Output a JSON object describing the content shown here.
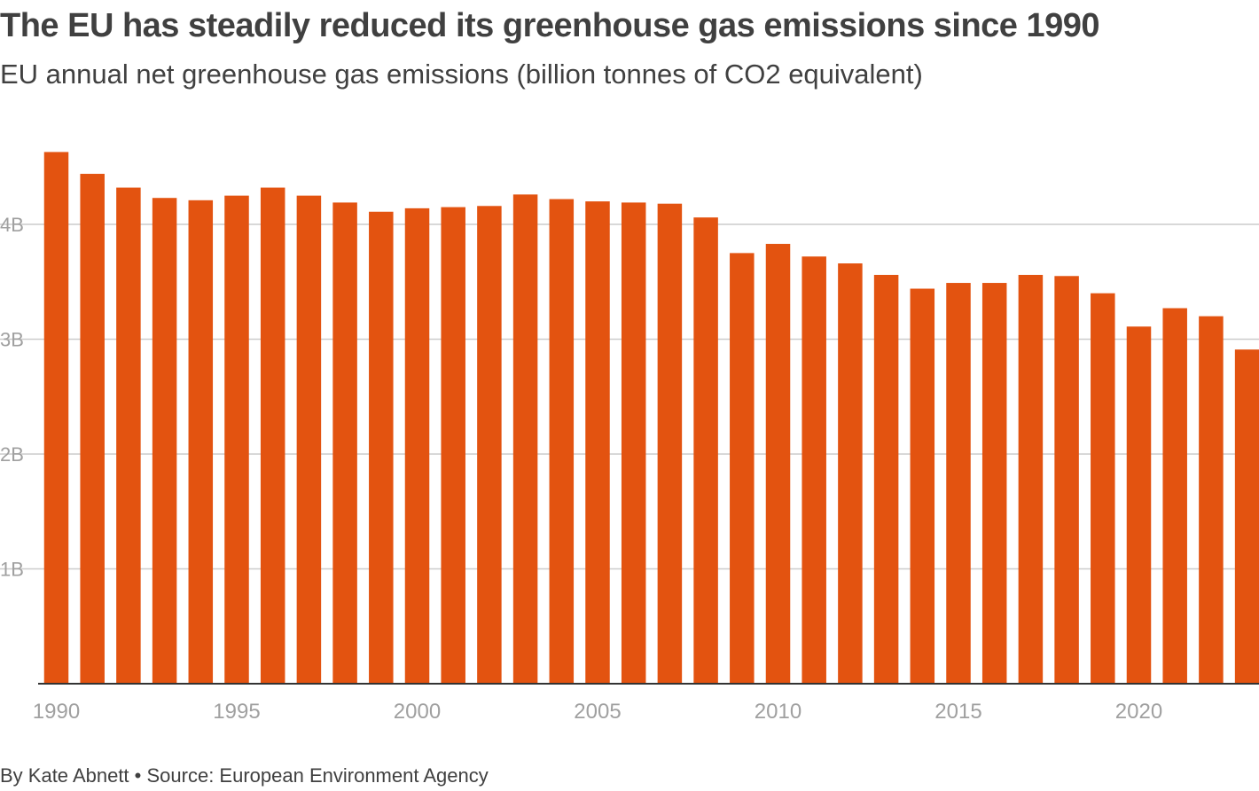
{
  "header": {
    "title": "The EU has steadily reduced its greenhouse gas emissions since 1990",
    "subtitle": "EU annual net greenhouse gas emissions (billion tonnes of CO2 equivalent)"
  },
  "footer": {
    "byline": "By Kate Abnett",
    "separator": "•",
    "source": "Source: European Environment Agency"
  },
  "colors": {
    "bar": "#e35310",
    "grid": "#cccccc",
    "axis": "#333333",
    "tick_text": "#a0a0a0"
  },
  "chart_data": {
    "type": "bar",
    "title": "The EU has steadily reduced its greenhouse gas emissions since 1990",
    "subtitle": "EU annual net greenhouse gas emissions (billion tonnes of CO2 equivalent)",
    "categories": [
      1990,
      1991,
      1992,
      1993,
      1994,
      1995,
      1996,
      1997,
      1998,
      1999,
      2000,
      2001,
      2002,
      2003,
      2004,
      2005,
      2006,
      2007,
      2008,
      2009,
      2010,
      2011,
      2012,
      2013,
      2014,
      2015,
      2016,
      2017,
      2018,
      2019,
      2020,
      2021,
      2022,
      2023
    ],
    "values": [
      4.63,
      4.44,
      4.32,
      4.23,
      4.21,
      4.25,
      4.32,
      4.25,
      4.19,
      4.11,
      4.14,
      4.15,
      4.16,
      4.26,
      4.22,
      4.2,
      4.19,
      4.18,
      4.06,
      3.75,
      3.83,
      3.72,
      3.66,
      3.56,
      3.44,
      3.49,
      3.49,
      3.56,
      3.55,
      3.4,
      3.11,
      3.27,
      3.2,
      2.91
    ],
    "ylim": [
      0,
      4.8
    ],
    "y_ticks": [
      {
        "value": 1,
        "label": "1B"
      },
      {
        "value": 2,
        "label": "2B"
      },
      {
        "value": 3,
        "label": "3B"
      },
      {
        "value": 4,
        "label": "4B"
      }
    ],
    "x_ticks": [
      {
        "value": 1990,
        "label": "1990"
      },
      {
        "value": 1995,
        "label": "1995"
      },
      {
        "value": 2000,
        "label": "2000"
      },
      {
        "value": 2005,
        "label": "2005"
      },
      {
        "value": 2010,
        "label": "2010"
      },
      {
        "value": 2015,
        "label": "2015"
      },
      {
        "value": 2020,
        "label": "2020"
      }
    ],
    "grid": true,
    "legend": "none",
    "xlabel": "",
    "ylabel": ""
  }
}
